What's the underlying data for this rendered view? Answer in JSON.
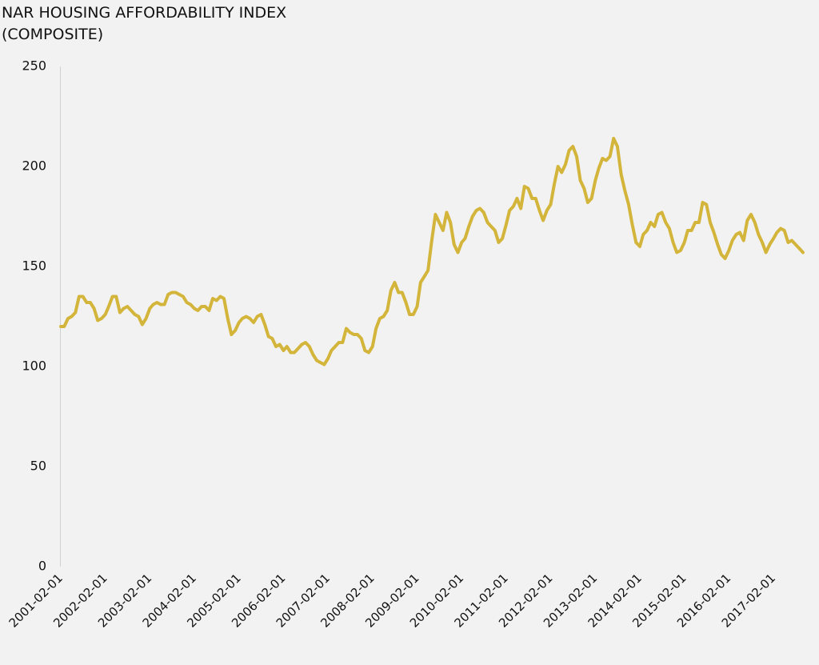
{
  "chart_data": {
    "type": "line",
    "title": "NAR HOUSING AFFORDABILITY INDEX",
    "subtitle": "(COMPOSITE)",
    "color": "#d4b53b",
    "x": [
      "2001-02-01",
      "2001-03-01",
      "2001-04-01",
      "2001-05-01",
      "2001-06-01",
      "2001-07-01",
      "2001-08-01",
      "2001-09-01",
      "2001-10-01",
      "2001-11-01",
      "2001-12-01",
      "2002-01-01",
      "2002-02-01",
      "2002-03-01",
      "2002-04-01",
      "2002-05-01",
      "2002-06-01",
      "2002-07-01",
      "2002-08-01",
      "2002-09-01",
      "2002-10-01",
      "2002-11-01",
      "2002-12-01",
      "2003-01-01",
      "2003-02-01",
      "2003-03-01",
      "2003-04-01",
      "2003-05-01",
      "2003-06-01",
      "2003-07-01",
      "2003-08-01",
      "2003-09-01",
      "2003-10-01",
      "2003-11-01",
      "2003-12-01",
      "2004-01-01",
      "2004-02-01",
      "2004-03-01",
      "2004-04-01",
      "2004-05-01",
      "2004-06-01",
      "2004-07-01",
      "2004-08-01",
      "2004-09-01",
      "2004-10-01",
      "2004-11-01",
      "2004-12-01",
      "2005-01-01",
      "2005-02-01",
      "2005-03-01",
      "2005-04-01",
      "2005-05-01",
      "2005-06-01",
      "2005-07-01",
      "2005-08-01",
      "2005-09-01",
      "2005-10-01",
      "2005-11-01",
      "2005-12-01",
      "2006-01-01",
      "2006-02-01",
      "2006-03-01",
      "2006-04-01",
      "2006-05-01",
      "2006-06-01",
      "2006-07-01",
      "2006-08-01",
      "2006-09-01",
      "2006-10-01",
      "2006-11-01",
      "2006-12-01",
      "2007-01-01",
      "2007-02-01",
      "2007-03-01",
      "2007-04-01",
      "2007-05-01",
      "2007-06-01",
      "2007-07-01",
      "2007-08-01",
      "2007-09-01",
      "2007-10-01",
      "2007-11-01",
      "2007-12-01",
      "2008-01-01",
      "2008-02-01",
      "2008-03-01",
      "2008-04-01",
      "2008-05-01",
      "2008-06-01",
      "2008-07-01",
      "2008-08-01",
      "2008-09-01",
      "2008-10-01",
      "2008-11-01",
      "2008-12-01",
      "2009-01-01",
      "2009-02-01",
      "2009-03-01",
      "2009-04-01",
      "2009-05-01",
      "2009-06-01",
      "2009-07-01",
      "2009-08-01",
      "2009-09-01",
      "2009-10-01",
      "2009-11-01",
      "2009-12-01",
      "2010-01-01",
      "2010-02-01",
      "2010-03-01",
      "2010-04-01",
      "2010-05-01",
      "2010-06-01",
      "2010-07-01",
      "2010-08-01",
      "2010-09-01",
      "2010-10-01",
      "2010-11-01",
      "2010-12-01",
      "2011-01-01",
      "2011-02-01",
      "2011-03-01",
      "2011-04-01",
      "2011-05-01",
      "2011-06-01",
      "2011-07-01",
      "2011-08-01",
      "2011-09-01",
      "2011-10-01",
      "2011-11-01",
      "2011-12-01",
      "2012-01-01",
      "2012-02-01",
      "2012-03-01",
      "2012-04-01",
      "2012-05-01",
      "2012-06-01",
      "2012-07-01",
      "2012-08-01",
      "2012-09-01",
      "2012-10-01",
      "2012-11-01",
      "2012-12-01",
      "2013-01-01",
      "2013-02-01",
      "2013-03-01",
      "2013-04-01",
      "2013-05-01",
      "2013-06-01",
      "2013-07-01",
      "2013-08-01",
      "2013-09-01",
      "2013-10-01",
      "2013-11-01",
      "2013-12-01",
      "2014-01-01",
      "2014-02-01",
      "2014-03-01",
      "2014-04-01",
      "2014-05-01",
      "2014-06-01",
      "2014-07-01",
      "2014-08-01",
      "2014-09-01",
      "2014-10-01",
      "2014-11-01",
      "2014-12-01",
      "2015-01-01",
      "2015-02-01",
      "2015-03-01",
      "2015-04-01",
      "2015-05-01",
      "2015-06-01",
      "2015-07-01",
      "2015-08-01",
      "2015-09-01",
      "2015-10-01",
      "2015-11-01",
      "2015-12-01",
      "2016-01-01",
      "2016-02-01",
      "2016-03-01",
      "2016-04-01",
      "2016-05-01",
      "2016-06-01",
      "2016-07-01",
      "2016-08-01",
      "2016-09-01",
      "2016-10-01",
      "2016-11-01",
      "2016-12-01",
      "2017-01-01",
      "2017-02-01",
      "2017-03-01",
      "2017-04-01",
      "2017-05-01",
      "2017-06-01",
      "2017-07-01",
      "2017-08-01",
      "2017-09-01",
      "2017-10-01"
    ],
    "values": [
      120,
      120,
      124,
      125,
      127,
      135,
      135,
      132,
      132,
      129,
      123,
      124,
      126,
      130,
      135,
      135,
      127,
      129,
      130,
      128,
      126,
      125,
      121,
      124,
      129,
      131,
      132,
      131,
      131,
      136,
      137,
      137,
      136,
      135,
      132,
      131,
      129,
      128,
      130,
      130,
      128,
      134,
      133,
      135,
      134,
      124,
      116,
      118,
      122,
      124,
      125,
      124,
      122,
      125,
      126,
      121,
      115,
      114,
      110,
      111,
      108,
      110,
      107,
      107,
      109,
      111,
      112,
      110,
      106,
      103,
      102,
      101,
      104,
      108,
      110,
      112,
      112,
      119,
      117,
      116,
      116,
      114,
      108,
      107,
      110,
      119,
      124,
      125,
      128,
      138,
      142,
      137,
      137,
      132,
      126,
      126,
      130,
      142,
      145,
      148,
      163,
      176,
      172,
      168,
      177,
      172,
      161,
      157,
      162,
      164,
      170,
      175,
      178,
      179,
      177,
      172,
      170,
      168,
      162,
      164,
      171,
      178,
      180,
      184,
      179,
      190,
      189,
      184,
      184,
      178,
      173,
      178,
      181,
      191,
      200,
      197,
      201,
      208,
      210,
      205,
      193,
      189,
      182,
      184,
      193,
      199,
      204,
      203,
      205,
      214,
      210,
      196,
      188,
      181,
      171,
      162,
      160,
      166,
      168,
      172,
      170,
      176,
      177,
      172,
      169,
      162,
      157,
      158,
      162,
      168,
      168,
      172,
      172,
      182,
      181,
      172,
      167,
      161,
      156,
      154,
      158,
      163,
      166,
      167,
      163,
      173,
      176,
      172,
      166,
      162,
      157,
      161,
      164,
      167,
      169,
      168,
      162,
      163,
      161,
      159,
      157
    ],
    "xlim": [
      "2001-02-01",
      "2017-10-01"
    ],
    "xticks": [
      "2001-02-01",
      "2002-02-01",
      "2003-02-01",
      "2004-02-01",
      "2005-02-01",
      "2006-02-01",
      "2007-02-01",
      "2008-02-01",
      "2009-02-01",
      "2010-02-01",
      "2011-02-01",
      "2012-02-01",
      "2013-02-01",
      "2014-02-01",
      "2015-02-01",
      "2016-02-01",
      "2017-02-01"
    ],
    "ylim": [
      0,
      250
    ],
    "yticks": [
      0,
      50,
      100,
      150,
      200,
      250
    ],
    "grid": false
  }
}
